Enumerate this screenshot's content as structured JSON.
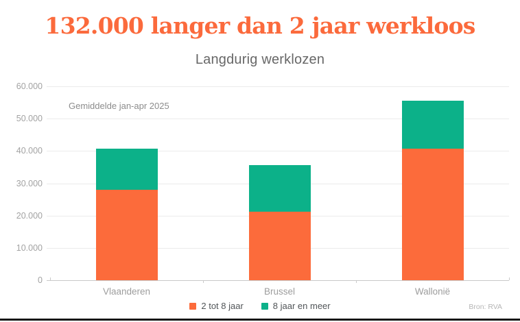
{
  "header": {
    "title": "132.000 langer dan 2 jaar werkloos",
    "subtitle": "Langdurig werklozen"
  },
  "annotation": "Gemiddelde jan-apr 2025",
  "source": "Bron: RVA",
  "colors": {
    "title": "#fb6a3c",
    "orange": "#fc6b3b",
    "green": "#0cb189",
    "grid": "#ebebeb",
    "axis_line": "#c9c9c9",
    "axis_text": "#9d9d9d",
    "legend_text": "#515558",
    "subtitle_text": "#676767",
    "annotation_text": "#8c8c8c",
    "source_text": "#b5b5b5"
  },
  "chart_data": {
    "type": "bar",
    "stacked": true,
    "title": "132.000 langer dan 2 jaar werkloos",
    "subtitle": "Langdurig werklozen",
    "annotation": "Gemiddelde jan-apr 2025",
    "source": "Bron: RVA",
    "categories": [
      "Vlaanderen",
      "Brussel",
      "Wallonië"
    ],
    "series": [
      {
        "name": "2 tot 8 jaar",
        "color": "#fc6b3b",
        "values": [
          27900,
          21200,
          40700
        ]
      },
      {
        "name": "8 jaar en meer",
        "color": "#0cb189",
        "values": [
          12800,
          14500,
          14900
        ]
      }
    ],
    "totals": [
      40700,
      35700,
      55600
    ],
    "ylim": [
      0,
      60000
    ],
    "yticks": [
      0,
      10000,
      20000,
      30000,
      40000,
      50000,
      60000
    ],
    "ytick_labels": [
      "0",
      "10.000",
      "20.000",
      "30.000",
      "40.000",
      "50.000",
      "60.000"
    ],
    "grid": true,
    "legend_position": "bottom"
  }
}
